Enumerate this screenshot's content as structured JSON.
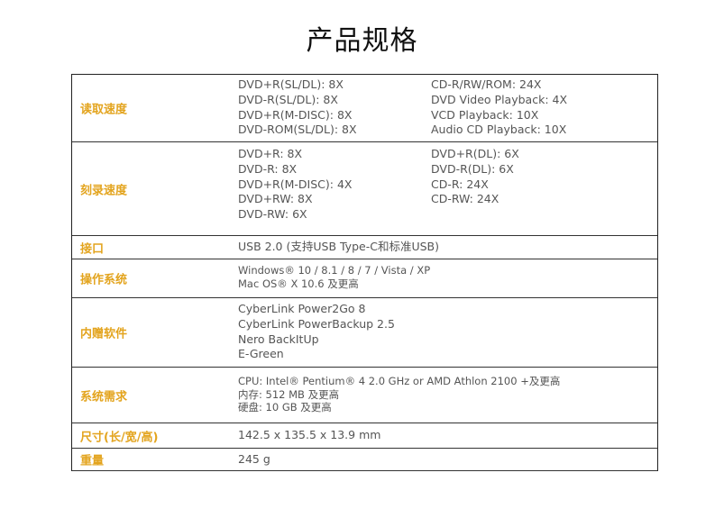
{
  "title": "产品规格",
  "accent_color": "#e3a41e",
  "rows": [
    {
      "label": "读取速度",
      "col1": [
        "DVD+R(SL/DL): 8X",
        "DVD-R(SL/DL): 8X",
        "DVD+R(M-DISC): 8X",
        "DVD-ROM(SL/DL): 8X"
      ],
      "col2": [
        "CD-R/RW/ROM: 24X",
        "DVD Video Playback: 4X",
        "VCD Playback: 10X",
        "Audio CD Playback: 10X"
      ]
    },
    {
      "label": "刻录速度",
      "col1": [
        "DVD+R: 8X",
        "DVD-R: 8X",
        "DVD+R(M-DISC): 4X",
        "DVD+RW: 8X",
        "DVD-RW: 6X"
      ],
      "col2": [
        "DVD+R(DL): 6X",
        "DVD-R(DL): 6X",
        "CD-R: 24X",
        "CD-RW: 24X"
      ]
    },
    {
      "label": "接口",
      "col1": [
        "USB 2.0 (支持USB Type-C和标准USB)"
      ]
    },
    {
      "label": "操作系统",
      "col1": [
        "Windows® 10 / 8.1 / 8 / 7 / Vista / XP",
        "Mac OS® X 10.6 及更高"
      ]
    },
    {
      "label": "内赠软件",
      "col1": [
        "CyberLink Power2Go 8",
        "CyberLink PowerBackup 2.5",
        "Nero BackItUp",
        "E-Green"
      ]
    },
    {
      "label": "系统需求",
      "col1": [
        "CPU: Intel® Pentium® 4 2.0 GHz or AMD Athlon 2100 +及更高",
        "内存: 512 MB 及更高",
        "硬盘: 10 GB 及更高"
      ]
    },
    {
      "label": "尺寸(长/宽/高)",
      "col1": [
        "142.5 x 135.5 x 13.9 mm"
      ]
    },
    {
      "label": "重量",
      "col1": [
        "245 g"
      ]
    }
  ]
}
